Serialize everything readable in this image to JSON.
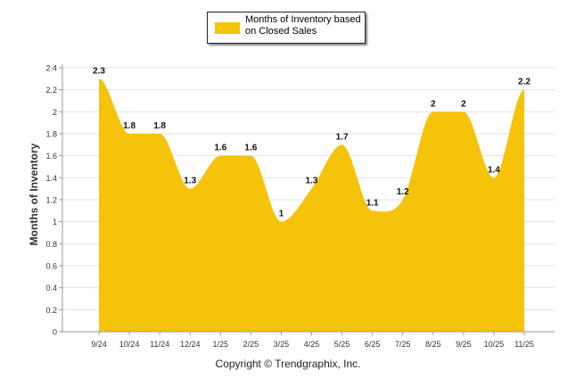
{
  "chart_data": {
    "type": "area",
    "categories": [
      "9/24",
      "10/24",
      "11/24",
      "12/24",
      "1/25",
      "2/25",
      "3/25",
      "4/25",
      "5/25",
      "6/25",
      "7/25",
      "8/25",
      "9/25",
      "10/25",
      "11/25"
    ],
    "series": [
      {
        "name": "Months of Inventory based on Closed Sales",
        "values": [
          2.3,
          1.8,
          1.8,
          1.3,
          1.6,
          1.6,
          1.0,
          1.3,
          1.7,
          1.1,
          1.2,
          2.0,
          2.0,
          1.4,
          2.2
        ],
        "data_labels": [
          "2.3",
          "1.8",
          "1.8",
          "1.3",
          "1.6",
          "1.6",
          "1",
          "1.3",
          "1.7",
          "1.1",
          "1.2",
          "2",
          "2",
          "1.4",
          "2.2"
        ]
      }
    ],
    "ylabel": "Months of Inventory",
    "ylim": [
      0,
      2.4
    ],
    "yticks": [
      0,
      0.2,
      0.4,
      0.6,
      0.8,
      1,
      1.2,
      1.4,
      1.6,
      1.8,
      2,
      2.2,
      2.4
    ],
    "ytick_labels": [
      "0",
      "0.2",
      "0.4",
      "0.6",
      "0.8",
      "1",
      "1.2",
      "1.4",
      "1.6",
      "1.8",
      "2",
      "2.2",
      "2.4"
    ],
    "grid": true,
    "legend": "top-center",
    "color": "#f5c30a"
  },
  "legend_label": "Months of Inventory based on Closed Sales",
  "footer": "Copyright © Trendgraphix, Inc."
}
